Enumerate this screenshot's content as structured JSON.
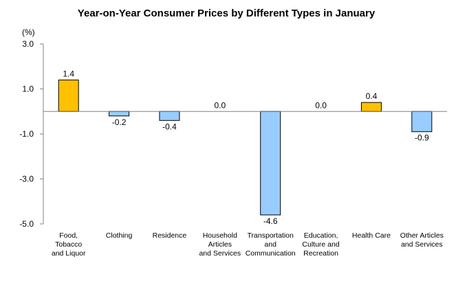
{
  "chart_data": {
    "type": "bar",
    "title": "Year-on-Year Consumer Prices by Different Types in January",
    "ylabel": "(%)",
    "xlabel": "",
    "ylim": [
      -5.0,
      3.0
    ],
    "yticks": [
      "3.0",
      "1.0",
      "-1.0",
      "-3.0",
      "-5.0"
    ],
    "ytick_values": [
      3.0,
      1.0,
      -1.0,
      -3.0,
      -5.0
    ],
    "grid": false,
    "categories": [
      [
        "Food,",
        "Tobacco",
        "and Liquor"
      ],
      [
        "Clothing"
      ],
      [
        "Residence"
      ],
      [
        "Household",
        "Articles",
        "and Services"
      ],
      [
        "Transportation",
        "and",
        "Communication"
      ],
      [
        "Education,",
        "Culture and",
        "Recreation"
      ],
      [
        "Health Care"
      ],
      [
        "Other Articles",
        "and Services"
      ]
    ],
    "values": [
      1.4,
      -0.2,
      -0.4,
      0.0,
      -4.6,
      0.0,
      0.4,
      -0.9
    ],
    "value_labels": [
      "1.4",
      "-0.2",
      "-0.4",
      "0.0",
      "-4.6",
      "0.0",
      "0.4",
      "-0.9"
    ],
    "colors": {
      "positive": "#FFC000",
      "negative": "#99CCFF",
      "outline": "#000000",
      "axis": "#808080"
    }
  }
}
